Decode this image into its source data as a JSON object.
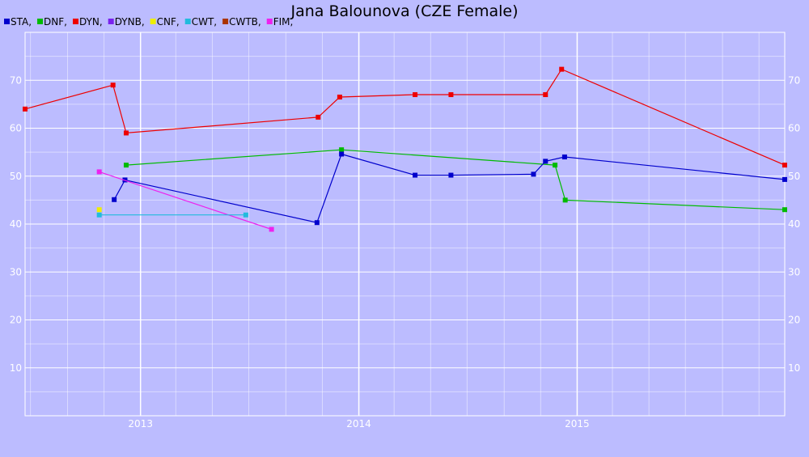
{
  "chart_data": {
    "type": "line",
    "title": "Jana Balounova (CZE Female)",
    "xlabel": "",
    "ylabel": "",
    "x_range": [
      "2012-06-22",
      "2015-12-14"
    ],
    "ylim": [
      0,
      80
    ],
    "y_ticks": [
      "10",
      "20",
      "30",
      "40",
      "50",
      "60",
      "70"
    ],
    "x_ticks": [
      {
        "date": "2013-01-01",
        "label": "2013"
      },
      {
        "date": "2014-01-01",
        "label": "2014"
      },
      {
        "date": "2015-01-01",
        "label": "2015"
      }
    ],
    "grid": true,
    "legend_position": "top-left",
    "legend": [
      {
        "label": "STA,",
        "color": "#0000cc"
      },
      {
        "label": "DNF,",
        "color": "#00bb00"
      },
      {
        "label": "DYN,",
        "color": "#ee0000"
      },
      {
        "label": "DYNB,",
        "color": "#7a22ee"
      },
      {
        "label": "CNF,",
        "color": "#eeee00"
      },
      {
        "label": "CWT,",
        "color": "#22bbdd"
      },
      {
        "label": "CWTB,",
        "color": "#aa3300"
      },
      {
        "label": "FIM,",
        "color": "#ee22ee"
      }
    ],
    "series": [
      {
        "key": "dyn",
        "color": "#ee0000",
        "points": [
          {
            "x": "2012-06-22",
            "y": 64
          },
          {
            "x": "2012-11-16",
            "y": 69
          },
          {
            "x": "2012-12-08",
            "y": 59
          },
          {
            "x": "2013-10-25",
            "y": 62.3
          },
          {
            "x": "2013-11-30",
            "y": 66.5
          },
          {
            "x": "2014-04-05",
            "y": 67
          },
          {
            "x": "2014-06-04",
            "y": 67
          },
          {
            "x": "2014-11-09",
            "y": 67
          },
          {
            "x": "2014-12-06",
            "y": 72.3
          },
          {
            "x": "2015-12-14",
            "y": 52.3
          }
        ]
      },
      {
        "key": "dnf",
        "color": "#00bb00",
        "points": [
          {
            "x": "2012-12-08",
            "y": 52.3
          },
          {
            "x": "2013-12-03",
            "y": 55.5
          },
          {
            "x": "2014-11-25",
            "y": 52.3
          },
          {
            "x": "2014-12-12",
            "y": 45
          },
          {
            "x": "2015-12-14",
            "y": 43
          }
        ]
      },
      {
        "key": "sta",
        "color": "#0000cc",
        "points": [
          {
            "x": "2012-11-18",
            "y": 45.1
          },
          {
            "x": "2012-12-06",
            "y": 49.2
          },
          {
            "x": "2013-10-23",
            "y": 40.3
          },
          {
            "x": "2013-12-03",
            "y": 54.6
          },
          {
            "x": "2014-04-05",
            "y": 50.2
          },
          {
            "x": "2014-06-04",
            "y": 50.2
          },
          {
            "x": "2014-10-20",
            "y": 50.4
          },
          {
            "x": "2014-11-09",
            "y": 53.1
          },
          {
            "x": "2014-12-11",
            "y": 54
          },
          {
            "x": "2015-12-14",
            "y": 49.3
          }
        ]
      },
      {
        "key": "fim",
        "color": "#ee22ee",
        "points": [
          {
            "x": "2012-10-24",
            "y": 50.9
          },
          {
            "x": "2013-08-08",
            "y": 38.9
          }
        ]
      },
      {
        "key": "cwt",
        "color": "#22bbdd",
        "points": [
          {
            "x": "2012-10-24",
            "y": 41.9
          },
          {
            "x": "2013-06-26",
            "y": 41.9
          }
        ]
      },
      {
        "key": "cnf",
        "color": "#eeee00",
        "points": [
          {
            "x": "2012-10-24",
            "y": 43
          }
        ]
      }
    ]
  }
}
